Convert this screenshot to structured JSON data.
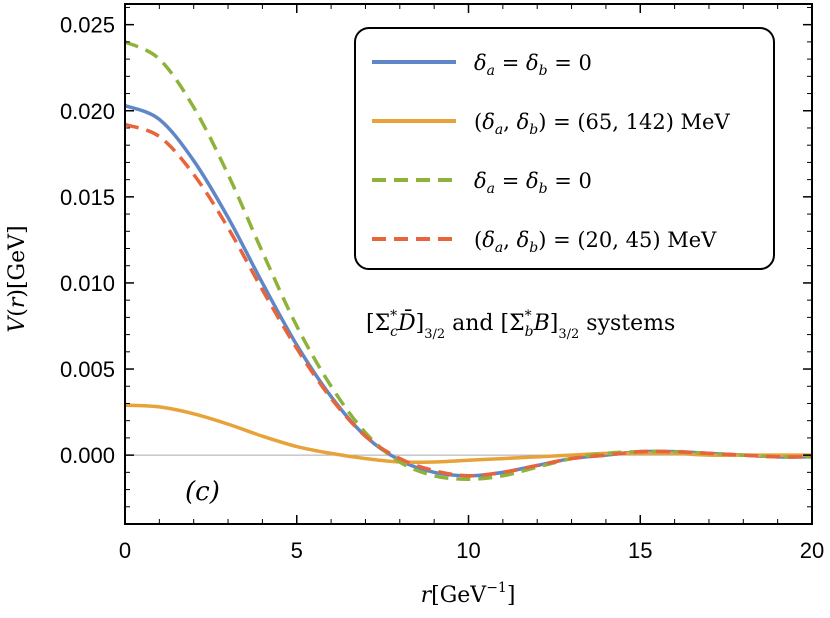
{
  "chart_data": {
    "type": "line",
    "xlabel": "r[GeV⁻¹]",
    "ylabel": "V(r)[GeV]",
    "xlim": [
      0,
      20
    ],
    "ylim": [
      -0.004,
      0.0262
    ],
    "x_ticks": [
      0,
      5,
      10,
      15,
      20
    ],
    "x_tick_labels": [
      "0",
      "5",
      "10",
      "15",
      "20"
    ],
    "y_ticks": [
      0.0,
      0.005,
      0.01,
      0.015,
      0.02,
      0.025
    ],
    "y_tick_labels": [
      "0.000",
      "0.005",
      "0.010",
      "0.015",
      "0.020",
      "0.025"
    ],
    "grid": false,
    "legend_position": "top-right",
    "annotation": "[Σc*D̄]3/2 and [Σb*B]3/2 systems",
    "panel_label": "(c)",
    "series": [
      {
        "name": "δa = δb = 0",
        "color": "#5f87c7",
        "dash": "solid",
        "x": [
          0,
          1,
          2,
          3,
          4,
          5,
          6,
          7,
          8,
          9,
          10,
          11,
          12,
          13,
          14,
          15,
          16,
          17,
          18,
          19,
          20
        ],
        "y": [
          0.0203,
          0.0195,
          0.0171,
          0.0138,
          0.01,
          0.0064,
          0.0034,
          0.0011,
          -0.0003,
          -0.001,
          -0.0012,
          -0.001,
          -0.0006,
          -0.0002,
          0.0,
          0.0002,
          0.0002,
          0.0001,
          0.0,
          -0.0001,
          -0.0001
        ]
      },
      {
        "name": "(δa, δb) = (65, 142) MeV",
        "color": "#e8a23a",
        "dash": "solid",
        "x": [
          0,
          1,
          2,
          3,
          4,
          5,
          6,
          7,
          8,
          9,
          10,
          11,
          12,
          13,
          14,
          15,
          16,
          17,
          18,
          19,
          20
        ],
        "y": [
          0.0029,
          0.0028,
          0.0024,
          0.0018,
          0.0011,
          0.0005,
          0.0001,
          -0.0002,
          -0.0004,
          -0.0004,
          -0.0003,
          -0.0002,
          -0.0001,
          0.0,
          0.0001,
          0.0001,
          0.0001,
          0.0,
          0.0,
          0.0,
          0.0
        ]
      },
      {
        "name": "δa = δb = 0",
        "color": "#8fb33a",
        "dash": "dashed",
        "x": [
          0,
          1,
          2,
          3,
          4,
          5,
          6,
          7,
          8,
          9,
          10,
          11,
          12,
          13,
          14,
          15,
          16,
          17,
          18,
          19,
          20
        ],
        "y": [
          0.024,
          0.023,
          0.0202,
          0.0163,
          0.0118,
          0.0075,
          0.004,
          0.0013,
          -0.0004,
          -0.0012,
          -0.0014,
          -0.0012,
          -0.0007,
          -0.0002,
          0.0001,
          0.0002,
          0.0002,
          0.0001,
          0.0,
          -0.0001,
          -0.0001
        ]
      },
      {
        "name": "(δa, δb) = (20, 45) MeV",
        "color": "#e8643a",
        "dash": "dashed",
        "x": [
          0,
          1,
          2,
          3,
          4,
          5,
          6,
          7,
          8,
          9,
          10,
          11,
          12,
          13,
          14,
          15,
          16,
          17,
          18,
          19,
          20
        ],
        "y": [
          0.0192,
          0.0185,
          0.0163,
          0.0132,
          0.0096,
          0.0062,
          0.0033,
          0.0011,
          -0.0002,
          -0.0009,
          -0.0012,
          -0.001,
          -0.0006,
          -0.0002,
          0.0,
          0.0002,
          0.0002,
          0.0001,
          0.0,
          -0.0001,
          -0.0001
        ]
      }
    ]
  }
}
